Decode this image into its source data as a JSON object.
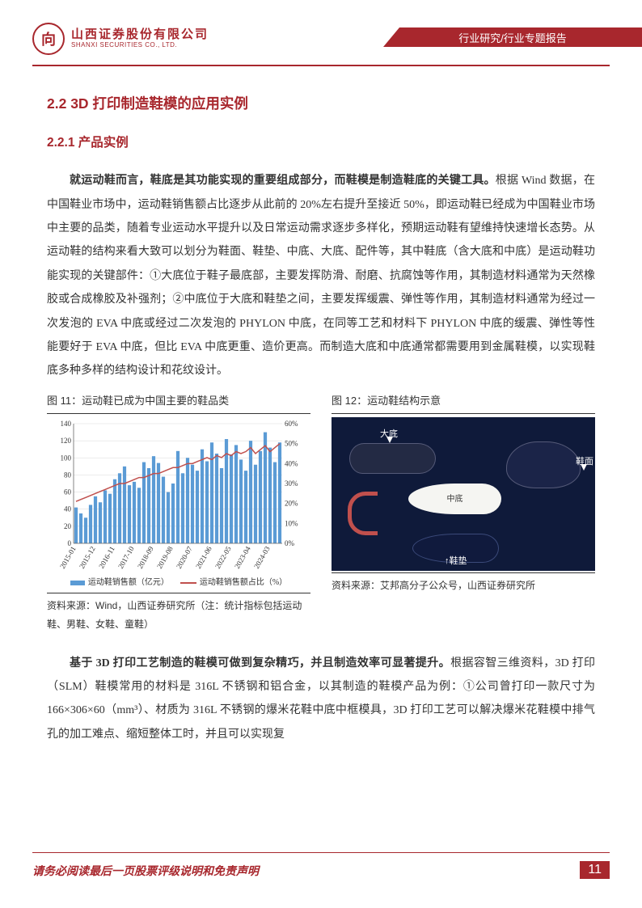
{
  "header": {
    "company_cn": "山西证券股份有限公司",
    "company_en": "SHANXI SECURITIES CO., LTD.",
    "category": "行业研究/行业专题报告"
  },
  "h2": "2.2  3D 打印制造鞋模的应用实例",
  "h3": "2.2.1  产品实例",
  "p1_bold": "就运动鞋而言，鞋底是其功能实现的重要组成部分，而鞋模是制造鞋底的关键工具。",
  "p1_rest": "根据 Wind 数据，在中国鞋业市场中，运动鞋销售额占比逐步从此前的 20%左右提升至接近 50%，即运动鞋已经成为中国鞋业市场中主要的品类，随着专业运动水平提升以及日常运动需求逐步多样化，预期运动鞋有望维持快速增长态势。从运动鞋的结构来看大致可以划分为鞋面、鞋垫、中底、大底、配件等，其中鞋底（含大底和中底）是运动鞋功能实现的关键部件：①大底位于鞋子最底部，主要发挥防滑、耐磨、抗腐蚀等作用，其制造材料通常为天然橡胶或合成橡胶及补强剂；②中底位于大底和鞋垫之间，主要发挥缓震、弹性等作用，其制造材料通常为经过一次发泡的 EVA 中底或经过二次发泡的 PHYLON 中底，在同等工艺和材料下 PHYLON 中底的缓震、弹性等性能要好于 EVA 中底，但比 EVA 中底更重、造价更高。而制造大底和中底通常都需要用到金属鞋模，以实现鞋底多种多样的结构设计和花纹设计。",
  "fig11": {
    "title": "图 11：运动鞋已成为中国主要的鞋品类",
    "type": "combo-bar-line",
    "xLabels": [
      "2015-01",
      "2015-12",
      "2016-11",
      "2017-10",
      "2018-09",
      "2019-08",
      "2020-07",
      "2021-06",
      "2022-05",
      "2023-04",
      "2024-03"
    ],
    "yLeft": {
      "min": 0,
      "max": 140,
      "step": 20,
      "label": "运动鞋销售额（亿元）"
    },
    "yRight": {
      "min": 0,
      "max": 0.6,
      "step": 0.1,
      "fmt": "%",
      "label": "运动鞋销售额占比（%）"
    },
    "bars": [
      42,
      35,
      30,
      45,
      55,
      48,
      62,
      58,
      75,
      82,
      90,
      68,
      72,
      65,
      95,
      88,
      102,
      94,
      78,
      60,
      70,
      108,
      82,
      100,
      92,
      85,
      110,
      96,
      118,
      105,
      88,
      122,
      104,
      115,
      98,
      85,
      120,
      92,
      108,
      130,
      112,
      95,
      118
    ],
    "line": [
      0.21,
      0.22,
      0.23,
      0.24,
      0.25,
      0.26,
      0.27,
      0.28,
      0.29,
      0.3,
      0.3,
      0.31,
      0.32,
      0.33,
      0.33,
      0.34,
      0.35,
      0.35,
      0.36,
      0.37,
      0.38,
      0.38,
      0.39,
      0.4,
      0.4,
      0.41,
      0.42,
      0.43,
      0.42,
      0.44,
      0.43,
      0.45,
      0.44,
      0.46,
      0.45,
      0.46,
      0.48,
      0.45,
      0.47,
      0.49,
      0.46,
      0.48,
      0.5
    ],
    "colors": {
      "bar": "#5b9bd5",
      "line": "#c0504d",
      "grid": "#d9d9d9",
      "axis": "#666",
      "text": "#333",
      "bg": "#ffffff"
    },
    "fontsize": 9,
    "legend": {
      "bar": "运动鞋销售额（亿元）",
      "line": "运动鞋销售额占比（%）"
    },
    "source": "资料来源：Wind，山西证券研究所（注：统计指标包括运动鞋、男鞋、女鞋、童鞋）"
  },
  "fig12": {
    "title": "图 12：运动鞋结构示意",
    "type": "infographic",
    "bg": "#0f1a3a",
    "labels": {
      "outsole": "大底",
      "midsole": "中底",
      "upper": "鞋面",
      "insole": "鞋垫"
    },
    "colors": {
      "midsole": "#f5f5f2",
      "heel": "#c0504d",
      "text": "#ffffff"
    },
    "source": "资料来源：艾邦高分子公众号，山西证券研究所"
  },
  "p2_bold": "基于 3D 打印工艺制造的鞋模可做到复杂精巧，并且制造效率可显著提升。",
  "p2_rest": "根据容智三维资料，3D 打印（SLM）鞋模常用的材料是 316L 不锈钢和铝合金，以其制造的鞋模产品为例：①公司曾打印一款尺寸为 166×306×60（mm³）、材质为 316L 不锈钢的爆米花鞋中底中框模具，3D 打印工艺可以解决爆米花鞋模中排气孔的加工难点、缩短整体工时，并且可以实现复",
  "footer": {
    "disclaimer": "请务必阅读最后一页股票评级说明和免责声明",
    "page": "11"
  }
}
